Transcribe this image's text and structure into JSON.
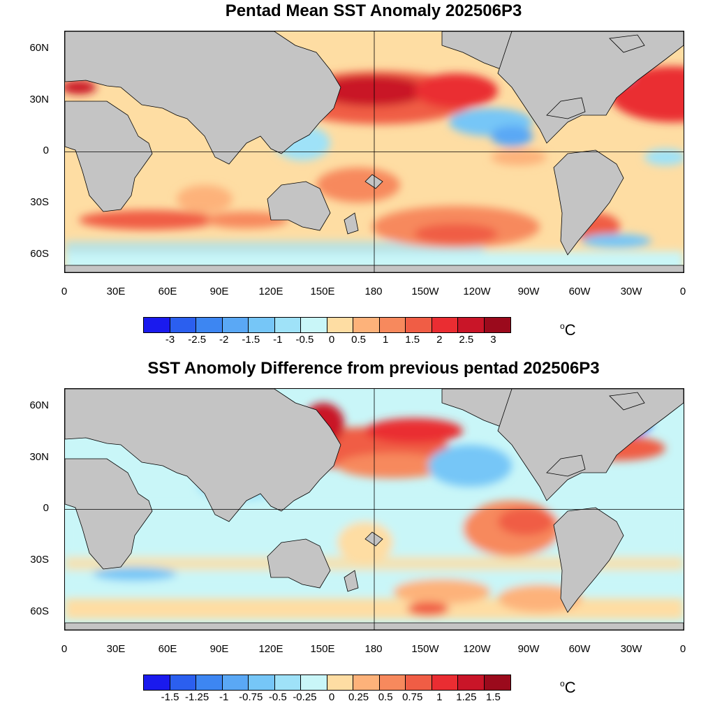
{
  "panels": [
    {
      "title": "Pentad Mean SST Anomaly 202506P3",
      "colorbar": {
        "colors": [
          "#1a1aee",
          "#2b5fef",
          "#3d86f2",
          "#5aa8f5",
          "#76c6f7",
          "#9fe2f8",
          "#c9f6f8",
          "#fedda3",
          "#fdb27a",
          "#f7895d",
          "#f05d45",
          "#ea2d32",
          "#c91528",
          "#9b0a1c"
        ],
        "labels": [
          "-3",
          "-2.5",
          "-2",
          "-1.5",
          "-1",
          "-0.5",
          "0",
          "0.5",
          "1",
          "1.5",
          "2",
          "2.5",
          "3"
        ],
        "units": "C"
      }
    },
    {
      "title": "SST Anomoly Difference from previous pentad 202506P3",
      "colorbar": {
        "colors": [
          "#1a1aee",
          "#2b5fef",
          "#3d86f2",
          "#5aa8f5",
          "#76c6f7",
          "#9fe2f8",
          "#c9f6f8",
          "#fedda3",
          "#fdb27a",
          "#f7895d",
          "#f05d45",
          "#ea2d32",
          "#c91528",
          "#9b0a1c"
        ],
        "labels": [
          "-1.5",
          "-1.25",
          "-1",
          "-0.75",
          "-0.5",
          "-0.25",
          "0",
          "0.25",
          "0.5",
          "0.75",
          "1",
          "1.25",
          "1.5"
        ],
        "units": "C"
      }
    }
  ],
  "axes": {
    "lat_labels": [
      "60N",
      "30N",
      "0",
      "30S",
      "60S"
    ],
    "lon_labels": [
      "0",
      "30E",
      "60E",
      "90E",
      "120E",
      "150E",
      "180",
      "150W",
      "120W",
      "90W",
      "60W",
      "30W",
      "0"
    ],
    "lat_range": [
      -70,
      70
    ],
    "lon_range": [
      0,
      360
    ]
  },
  "land_color": "#c4c4c4"
}
